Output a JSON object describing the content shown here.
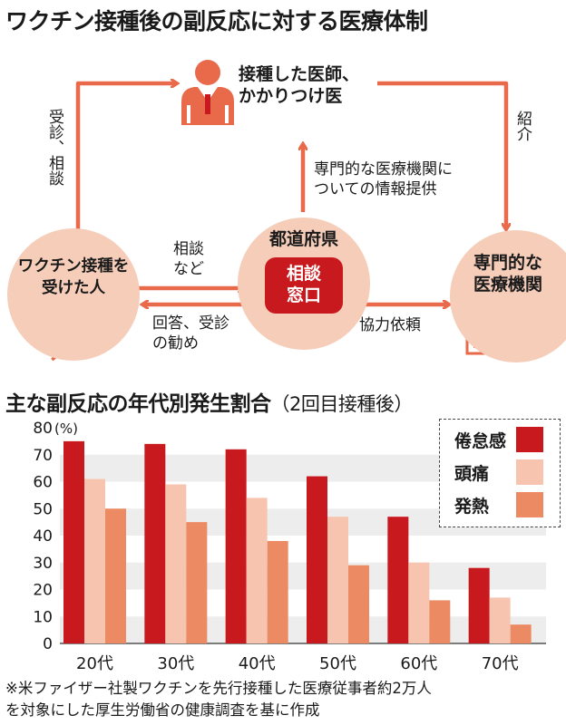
{
  "diagram": {
    "title": "ワクチン接種後の副反応に対する医療体制",
    "nodes": {
      "doctor": "接種した医師、\nかかりつけ医",
      "recipient": "ワクチン接種を\n受けた人",
      "prefecture": "都道府県",
      "consultation_window": "相談\n窓口",
      "specialist": "専門的な\n医療機関"
    },
    "edges": {
      "recipient_to_doctor": "受診、相談",
      "doctor_to_specialist": "紹介",
      "prefecture_to_doctor": "専門的な医療機関に\nついての情報提供",
      "recipient_to_prefecture": "相談\nなど",
      "prefecture_to_recipient": "回答、受診\nの勧め",
      "prefecture_to_specialist": "協力依頼"
    },
    "icons": [
      "doctor-icon",
      "syringe-icon",
      "hospital-icon"
    ]
  },
  "chart_data": {
    "type": "bar",
    "title": "主な副反応の年代別発生割合",
    "subtitle": "（2回目接種後）",
    "unit": "(%)",
    "categories": [
      "20代",
      "30代",
      "40代",
      "50代",
      "60代",
      "70代"
    ],
    "series": [
      {
        "name": "倦怠感",
        "values": [
          75,
          74,
          72,
          62,
          47,
          28
        ],
        "color": "#c8191e"
      },
      {
        "name": "頭痛",
        "values": [
          61,
          59,
          54,
          47,
          30,
          17
        ],
        "color": "#f7c4b0"
      },
      {
        "name": "発熱",
        "values": [
          50,
          45,
          38,
          29,
          16,
          7
        ],
        "color": "#ec8a64"
      }
    ],
    "ylim": [
      0,
      80
    ],
    "yticks": [
      0,
      10,
      20,
      30,
      40,
      50,
      60,
      70,
      80
    ],
    "grid": "alternating horizontal bands",
    "legend": "top-right",
    "footnote": "※米ファイザー社製ワクチンを先行接種した医療従事者約2万人\nを対象にした厚生労働省の健康調査を基に作成"
  }
}
